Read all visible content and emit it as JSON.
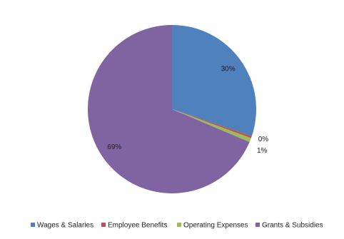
{
  "chart_data": {
    "type": "pie",
    "categories": [
      "Wages & Salaries",
      "Employee Benefits",
      "Operating Expenses",
      "Grants & Subsidies"
    ],
    "values": [
      30.2,
      0.4,
      0.8,
      68.6
    ],
    "value_labels": [
      "30%",
      "0%",
      "1%",
      "69%"
    ],
    "colors": [
      "#4f81bd",
      "#c0504d",
      "#9bbb59",
      "#8064a2"
    ],
    "legend": "bottom"
  }
}
